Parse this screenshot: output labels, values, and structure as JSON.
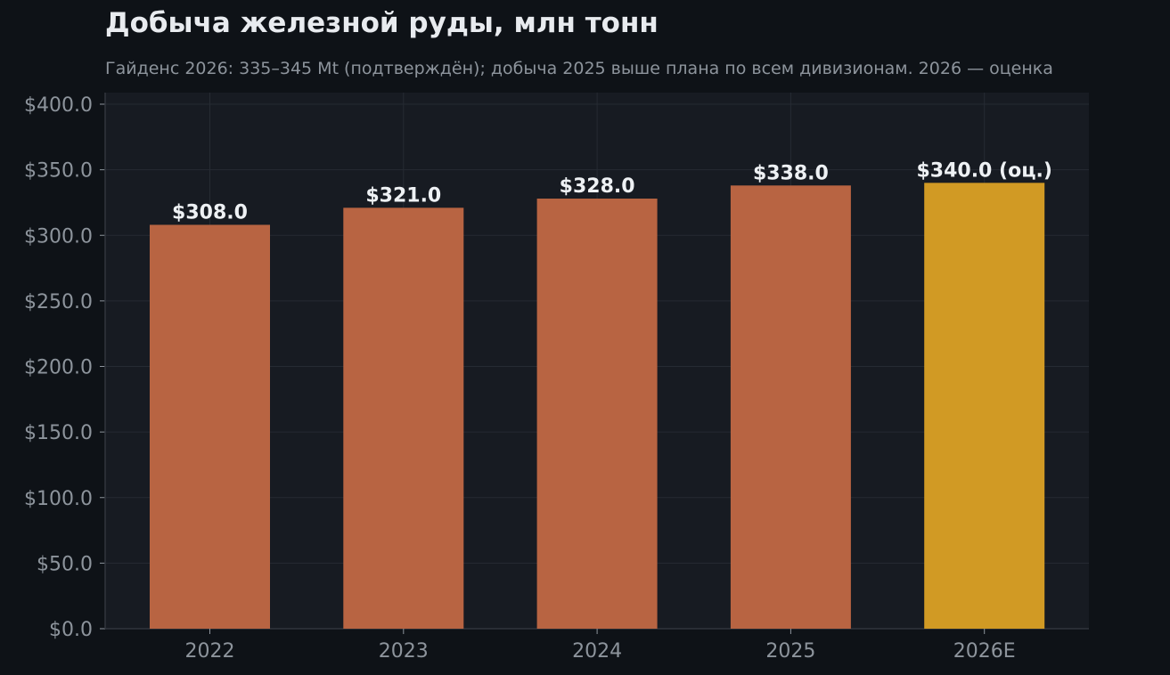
{
  "chart_data": {
    "type": "bar",
    "title": "Добыча железной руды, млн тонн",
    "subtitle": "Гайденс 2026: 335–345 Mt (подтверждён); добыча 2025 выше плана по всем дивизионам. 2026 — оценка",
    "categories": [
      "2022",
      "2023",
      "2024",
      "2025",
      "2026E"
    ],
    "values": [
      308.0,
      321.0,
      328.0,
      338.0,
      340.0
    ],
    "data_labels": [
      "$308.0",
      "$321.0",
      "$328.0",
      "$338.0",
      "$340.0 (оц.)"
    ],
    "estimate": [
      false,
      false,
      false,
      false,
      true
    ],
    "xlabel": "",
    "ylabel": "",
    "ylim": [
      0,
      400
    ],
    "yticks": [
      0,
      50,
      100,
      150,
      200,
      250,
      300,
      350,
      400
    ],
    "ytick_labels": [
      "$0.0",
      "$50.0",
      "$100.0",
      "$150.0",
      "$200.0",
      "$250.0",
      "$300.0",
      "$350.0",
      "$400.0"
    ],
    "grid": true,
    "colors": {
      "background": "#0e1217",
      "plot_background": "#171b22",
      "grid": "#262b33",
      "bar_actual": "#b86442",
      "bar_estimate": "#d19a24",
      "text": "#e8ebef",
      "muted_text": "#8d949c"
    }
  }
}
